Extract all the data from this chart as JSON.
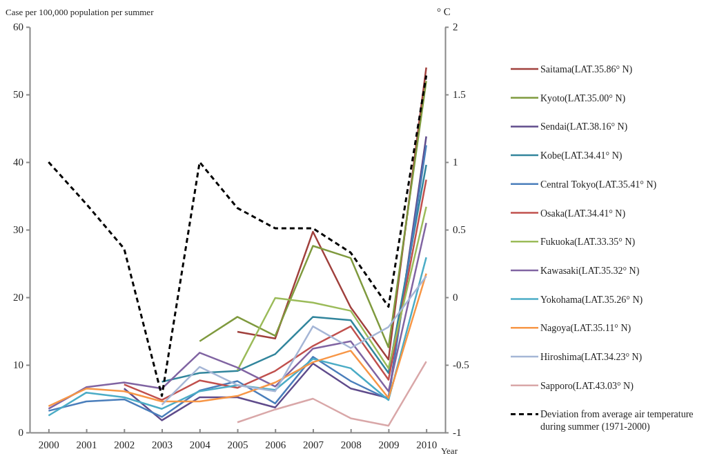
{
  "chart_data": {
    "type": "line",
    "ylabel": "Case per 100,000  population per summer",
    "y2label": "° C",
    "xlabel": "Year",
    "categories": [
      "2000",
      "2001",
      "2002",
      "2003",
      "2004",
      "2005",
      "2006",
      "2007",
      "2008",
      "2009",
      "2010"
    ],
    "ylim": [
      0,
      60
    ],
    "yticks": [
      0,
      10,
      20,
      30,
      40,
      50,
      60
    ],
    "y2lim": [
      -1,
      2
    ],
    "y2ticks": [
      -1,
      -0.5,
      0,
      0.5,
      1,
      1.5,
      2
    ],
    "legend": "right",
    "grid": false,
    "series": [
      {
        "name": "Saitama(LAT.35.86° N)",
        "color": "#a0403c",
        "values": [
          null,
          null,
          null,
          null,
          null,
          14.9,
          13.9,
          29.7,
          18.5,
          10.8,
          54
        ]
      },
      {
        "name": "Kyoto(LAT.35.00° N)",
        "color": "#7f9a3e",
        "values": [
          null,
          null,
          null,
          null,
          13.5,
          17.1,
          14.3,
          27.6,
          25.8,
          12.6,
          52
        ]
      },
      {
        "name": "Sendai(LAT.38.16° N)",
        "color": "#5f4b8b",
        "values": [
          null,
          null,
          6.5,
          1.8,
          5.2,
          5.2,
          3.7,
          10.2,
          6.5,
          5.1,
          43.8
        ]
      },
      {
        "name": "Kobe(LAT.34.41° N)",
        "color": "#31859c",
        "values": [
          null,
          null,
          null,
          7.5,
          8.8,
          9.1,
          11.6,
          17.1,
          16.6,
          8.8,
          39.6
        ]
      },
      {
        "name": "Central Tokyo(LAT.35.41° N)",
        "color": "#4a7ebb",
        "values": [
          3.2,
          4.6,
          4.9,
          2.3,
          6.2,
          7.6,
          4.3,
          11.2,
          7.6,
          4.9,
          42.5
        ]
      },
      {
        "name": "Osaka(LAT.34.41° N)",
        "color": "#c0504d",
        "values": [
          null,
          null,
          7.1,
          4.8,
          7.7,
          6.6,
          9.1,
          12.8,
          15.7,
          7.8,
          37.4
        ]
      },
      {
        "name": "Fukuoka(LAT.33.35° N)",
        "color": "#9bbb59",
        "values": [
          null,
          null,
          null,
          null,
          null,
          9.2,
          19.9,
          19.2,
          18.0,
          9.5,
          33.4
        ]
      },
      {
        "name": "Kawasaki(LAT.35.32° N)",
        "color": "#8064a2",
        "values": [
          3.5,
          6.7,
          7.4,
          6.5,
          11.8,
          9.6,
          6.8,
          12.4,
          13.5,
          6.1,
          31
        ]
      },
      {
        "name": "Yokohama(LAT.35.26° N)",
        "color": "#4bacc6",
        "values": [
          2.5,
          5.9,
          5.2,
          3.5,
          6.1,
          7.0,
          6.3,
          10.9,
          9.5,
          4.8,
          25.9
        ]
      },
      {
        "name": "Nagoya(LAT.35.11° N)",
        "color": "#f79646",
        "values": [
          3.9,
          6.5,
          6.1,
          4.6,
          4.6,
          5.4,
          7.4,
          10.4,
          12.1,
          5.1,
          23.5
        ]
      },
      {
        "name": "Hiroshima(LAT.34.23° N)",
        "color": "#a5b6d6",
        "values": [
          null,
          null,
          null,
          4.1,
          9.7,
          7.0,
          6.1,
          15.7,
          12.5,
          15.6,
          23.1
        ]
      },
      {
        "name": "Sapporo(LAT.43.03° N)",
        "color": "#d9a7a8",
        "values": [
          null,
          null,
          null,
          null,
          null,
          1.5,
          3.4,
          5.0,
          2.1,
          1.0,
          10.5
        ]
      },
      {
        "name": "Deviation from average air temperature during summer (1971-2000)",
        "color": "#000000",
        "axis": "y2",
        "line_style": "dashed",
        "values": [
          1.0,
          0.69,
          0.36,
          -0.73,
          1.0,
          0.66,
          0.51,
          0.51,
          0.33,
          -0.07,
          1.64
        ]
      }
    ]
  }
}
